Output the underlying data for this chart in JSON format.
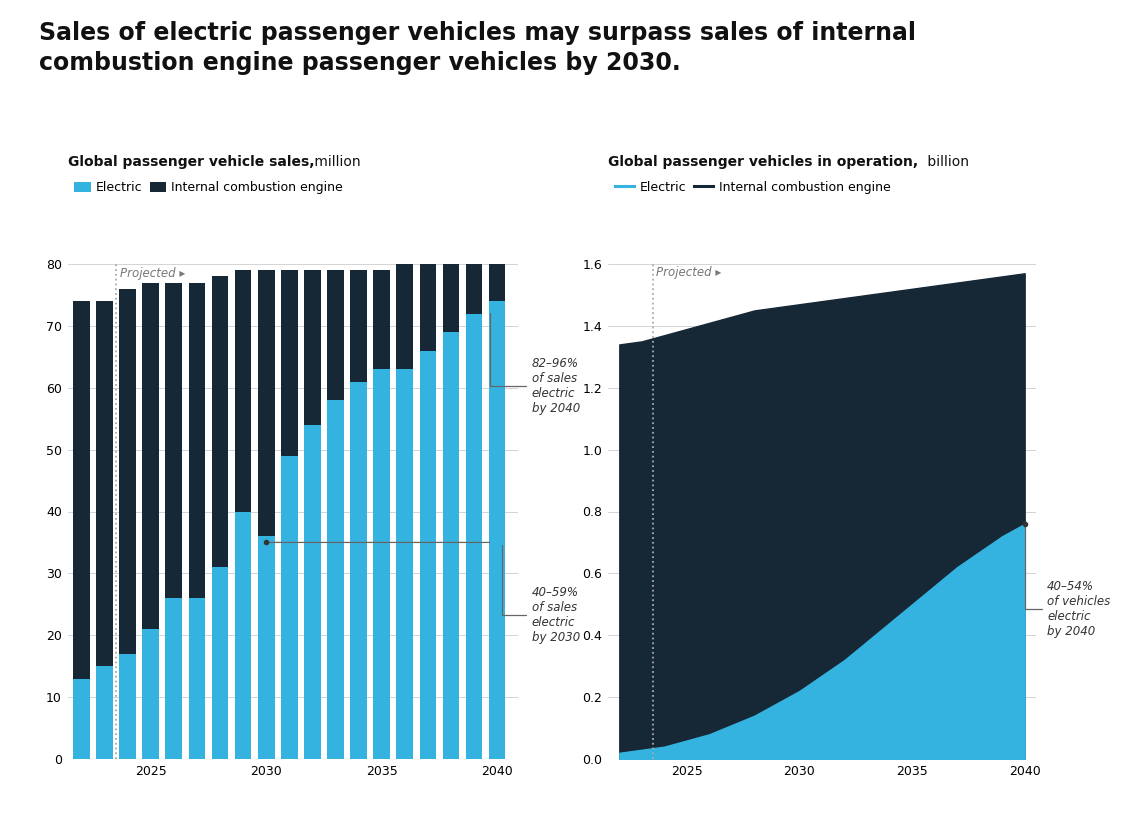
{
  "title_line1": "Sales of electric passenger vehicles may surpass sales of internal",
  "title_line2": "combustion engine passenger vehicles by 2030.",
  "title_fontsize": 17,
  "bg_color": "#ffffff",
  "left_subtitle_bold": "Global passenger vehicle sales,",
  "left_subtitle_normal": " million",
  "right_subtitle_bold": "Global passenger vehicles in operation,",
  "right_subtitle_normal": " billion",
  "bar_years": [
    2022,
    2023,
    2024,
    2025,
    2026,
    2027,
    2028,
    2029,
    2030,
    2031,
    2032,
    2033,
    2034,
    2035,
    2036,
    2037,
    2038,
    2039,
    2040
  ],
  "electric_sales": [
    13,
    15,
    17,
    21,
    26,
    26,
    31,
    40,
    36,
    49,
    54,
    58,
    61,
    63,
    63,
    66,
    69,
    72,
    74
  ],
  "total_sales": [
    74,
    74,
    76,
    77,
    77,
    77,
    78,
    79,
    79,
    79,
    79,
    79,
    79,
    79,
    80,
    80,
    80,
    80,
    80
  ],
  "area_years": [
    2022,
    2023,
    2024,
    2025,
    2026,
    2027,
    2028,
    2029,
    2030,
    2031,
    2032,
    2033,
    2034,
    2035,
    2036,
    2037,
    2038,
    2039,
    2040
  ],
  "electric_op": [
    0.02,
    0.03,
    0.04,
    0.06,
    0.08,
    0.11,
    0.14,
    0.18,
    0.22,
    0.27,
    0.32,
    0.38,
    0.44,
    0.5,
    0.56,
    0.62,
    0.67,
    0.72,
    0.76
  ],
  "total_op": [
    1.34,
    1.35,
    1.37,
    1.39,
    1.41,
    1.43,
    1.45,
    1.46,
    1.47,
    1.48,
    1.49,
    1.5,
    1.51,
    1.52,
    1.53,
    1.54,
    1.55,
    1.56,
    1.57
  ],
  "electric_color": "#35b3e0",
  "ice_color": "#162736",
  "bar_ylim": [
    0,
    80
  ],
  "bar_yticks": [
    0,
    10,
    20,
    30,
    40,
    50,
    60,
    70,
    80
  ],
  "area_ylim": [
    0,
    1.6
  ],
  "area_yticks": [
    0,
    0.2,
    0.4,
    0.6,
    0.8,
    1.0,
    1.2,
    1.4,
    1.6
  ],
  "proj_label": "Projected ▸",
  "proj_color": "#777777",
  "annot1_text": "82–96%\nof sales\nelectric\nby 2040",
  "annot2_text": "40–59%\nof sales\nelectric\nby 2030",
  "annot3_text": "40–54%\nof vehicles\nelectric\nby 2040"
}
